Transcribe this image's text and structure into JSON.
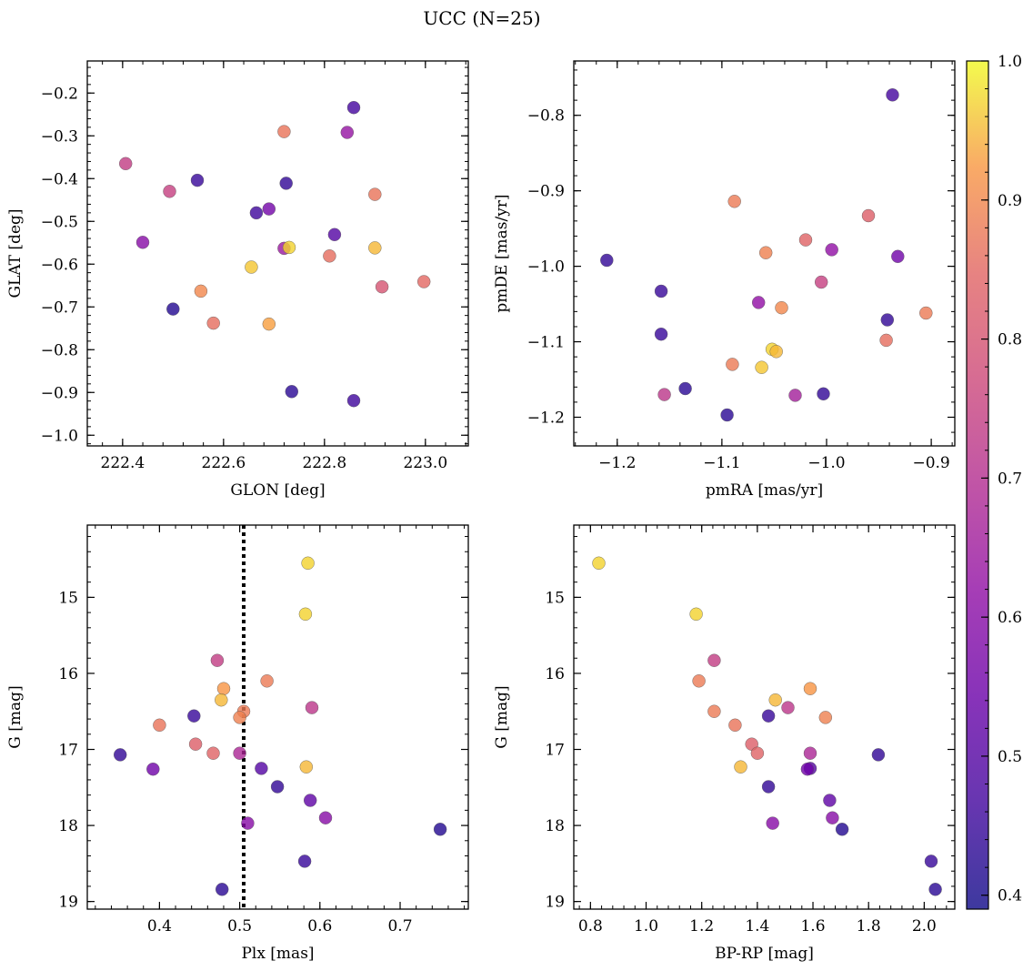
{
  "figure": {
    "title": "UCC (N=25)"
  },
  "colorbar": {
    "range": [
      0.39,
      1.0
    ],
    "ticks": [
      "0.4",
      "0.5",
      "0.6",
      "0.7",
      "0.8",
      "0.9",
      "1.0"
    ],
    "tick_values": [
      0.4,
      0.5,
      0.6,
      0.7,
      0.8,
      0.9,
      1.0
    ],
    "colormap": "plasma"
  },
  "chart_data": [
    {
      "type": "scatter",
      "xlabel": "GLON [deg]",
      "ylabel": "GLAT [deg]",
      "xlim": [
        222.33,
        223.085
      ],
      "ylim": [
        -1.025,
        -0.125
      ],
      "xticks": [
        222.4,
        222.6,
        222.8,
        223.0
      ],
      "xticklabels": [
        "222.4",
        "222.6",
        "222.8",
        "223.0"
      ],
      "yticks": [
        -0.2,
        -0.3,
        -0.4,
        -0.5,
        -0.6,
        -0.7,
        -0.8,
        -0.9,
        -1.0
      ],
      "yticklabels": [
        "−0.2",
        "−0.3",
        "−0.4",
        "−0.5",
        "−0.6",
        "−0.7",
        "−0.8",
        "−0.9",
        "−1.0"
      ],
      "points": [
        {
          "x": 222.406,
          "y": -0.365,
          "c": 0.74
        },
        {
          "x": 222.493,
          "y": -0.43,
          "c": 0.75
        },
        {
          "x": 222.548,
          "y": -0.404,
          "c": 0.45
        },
        {
          "x": 222.44,
          "y": -0.549,
          "c": 0.6
        },
        {
          "x": 222.5,
          "y": -0.705,
          "c": 0.42
        },
        {
          "x": 222.555,
          "y": -0.663,
          "c": 0.9
        },
        {
          "x": 222.58,
          "y": -0.738,
          "c": 0.86
        },
        {
          "x": 222.655,
          "y": -0.607,
          "c": 0.96
        },
        {
          "x": 222.665,
          "y": -0.48,
          "c": 0.46
        },
        {
          "x": 222.69,
          "y": -0.471,
          "c": 0.56
        },
        {
          "x": 222.69,
          "y": -0.74,
          "c": 0.93
        },
        {
          "x": 222.72,
          "y": -0.29,
          "c": 0.87
        },
        {
          "x": 222.724,
          "y": -0.411,
          "c": 0.44
        },
        {
          "x": 222.72,
          "y": -0.563,
          "c": 0.64
        },
        {
          "x": 222.73,
          "y": -0.561,
          "c": 0.97
        },
        {
          "x": 222.735,
          "y": -0.898,
          "c": 0.43
        },
        {
          "x": 222.81,
          "y": -0.581,
          "c": 0.86
        },
        {
          "x": 222.82,
          "y": -0.531,
          "c": 0.5
        },
        {
          "x": 222.845,
          "y": -0.292,
          "c": 0.63
        },
        {
          "x": 222.858,
          "y": -0.234,
          "c": 0.47
        },
        {
          "x": 222.858,
          "y": -0.919,
          "c": 0.46
        },
        {
          "x": 222.9,
          "y": -0.437,
          "c": 0.87
        },
        {
          "x": 222.9,
          "y": -0.562,
          "c": 0.95
        },
        {
          "x": 222.914,
          "y": -0.653,
          "c": 0.8
        },
        {
          "x": 222.997,
          "y": -0.641,
          "c": 0.85
        }
      ]
    },
    {
      "type": "scatter",
      "xlabel": "pmRA [mas/yr]",
      "ylabel": "pmDE [mas/yr]",
      "xlim": [
        -1.2415,
        -0.8775
      ],
      "ylim": [
        -1.238,
        -0.728
      ],
      "xticks": [
        -1.2,
        -1.1,
        -1.0,
        -0.9
      ],
      "xticklabels": [
        "−1.2",
        "−1.1",
        "−1.0",
        "−0.9"
      ],
      "yticks": [
        -0.8,
        -0.9,
        -1.0,
        -1.1,
        -1.2
      ],
      "yticklabels": [
        "−0.8",
        "−0.9",
        "−1.0",
        "−1.1",
        "−1.2"
      ],
      "points": [
        {
          "x": -1.21,
          "y": -0.992,
          "c": 0.44
        },
        {
          "x": -1.158,
          "y": -1.033,
          "c": 0.45
        },
        {
          "x": -1.158,
          "y": -1.09,
          "c": 0.45
        },
        {
          "x": -1.155,
          "y": -1.17,
          "c": 0.72
        },
        {
          "x": -1.135,
          "y": -1.162,
          "c": 0.43
        },
        {
          "x": -1.095,
          "y": -1.197,
          "c": 0.43
        },
        {
          "x": -1.088,
          "y": -0.914,
          "c": 0.88
        },
        {
          "x": -1.09,
          "y": -1.13,
          "c": 0.88
        },
        {
          "x": -1.065,
          "y": -1.048,
          "c": 0.62
        },
        {
          "x": -1.062,
          "y": -1.134,
          "c": 0.96
        },
        {
          "x": -1.058,
          "y": -0.982,
          "c": 0.89
        },
        {
          "x": -1.052,
          "y": -1.11,
          "c": 0.97
        },
        {
          "x": -1.048,
          "y": -1.113,
          "c": 0.95
        },
        {
          "x": -1.043,
          "y": -1.055,
          "c": 0.9
        },
        {
          "x": -1.03,
          "y": -1.171,
          "c": 0.66
        },
        {
          "x": -1.02,
          "y": -0.965,
          "c": 0.84
        },
        {
          "x": -1.005,
          "y": -1.021,
          "c": 0.75
        },
        {
          "x": -1.003,
          "y": -1.169,
          "c": 0.44
        },
        {
          "x": -0.995,
          "y": -0.978,
          "c": 0.62
        },
        {
          "x": -0.96,
          "y": -0.933,
          "c": 0.83
        },
        {
          "x": -0.943,
          "y": -1.098,
          "c": 0.86
        },
        {
          "x": -0.942,
          "y": -1.071,
          "c": 0.44
        },
        {
          "x": -0.937,
          "y": -0.773,
          "c": 0.47
        },
        {
          "x": -0.932,
          "y": -0.987,
          "c": 0.55
        },
        {
          "x": -0.905,
          "y": -1.062,
          "c": 0.88
        }
      ]
    },
    {
      "type": "scatter",
      "xlabel": "Plx [mas]",
      "ylabel": "G [mag]",
      "xlim": [
        0.31,
        0.785
      ],
      "ylim": [
        19.1,
        14.05
      ],
      "xticks": [
        0.4,
        0.5,
        0.6,
        0.7
      ],
      "xticklabels": [
        "0.4",
        "0.5",
        "0.6",
        "0.7"
      ],
      "yticks": [
        15,
        16,
        17,
        18,
        19
      ],
      "yticklabels": [
        "15",
        "16",
        "17",
        "18",
        "19"
      ],
      "vline": 0.505,
      "points": [
        {
          "x": 0.585,
          "y": 14.55,
          "c": 0.97
        },
        {
          "x": 0.582,
          "y": 15.22,
          "c": 0.97
        },
        {
          "x": 0.472,
          "y": 15.83,
          "c": 0.74
        },
        {
          "x": 0.534,
          "y": 16.1,
          "c": 0.88
        },
        {
          "x": 0.48,
          "y": 16.2,
          "c": 0.92
        },
        {
          "x": 0.477,
          "y": 16.35,
          "c": 0.95
        },
        {
          "x": 0.59,
          "y": 16.45,
          "c": 0.72
        },
        {
          "x": 0.505,
          "y": 16.5,
          "c": 0.88
        },
        {
          "x": 0.443,
          "y": 16.56,
          "c": 0.45
        },
        {
          "x": 0.5,
          "y": 16.58,
          "c": 0.89
        },
        {
          "x": 0.4,
          "y": 16.68,
          "c": 0.87
        },
        {
          "x": 0.445,
          "y": 16.93,
          "c": 0.83
        },
        {
          "x": 0.467,
          "y": 17.05,
          "c": 0.84
        },
        {
          "x": 0.5,
          "y": 17.05,
          "c": 0.68
        },
        {
          "x": 0.351,
          "y": 17.07,
          "c": 0.44
        },
        {
          "x": 0.583,
          "y": 17.23,
          "c": 0.95
        },
        {
          "x": 0.527,
          "y": 17.25,
          "c": 0.5
        },
        {
          "x": 0.392,
          "y": 17.26,
          "c": 0.55
        },
        {
          "x": 0.547,
          "y": 17.49,
          "c": 0.44
        },
        {
          "x": 0.588,
          "y": 17.67,
          "c": 0.52
        },
        {
          "x": 0.607,
          "y": 17.9,
          "c": 0.6
        },
        {
          "x": 0.51,
          "y": 17.97,
          "c": 0.6
        },
        {
          "x": 0.75,
          "y": 18.05,
          "c": 0.42
        },
        {
          "x": 0.581,
          "y": 18.47,
          "c": 0.45
        },
        {
          "x": 0.478,
          "y": 18.84,
          "c": 0.43
        }
      ]
    },
    {
      "type": "scatter",
      "xlabel": "BP-RP [mag]",
      "ylabel": "G [mag]",
      "xlim": [
        0.74,
        2.11
      ],
      "ylim": [
        19.1,
        14.05
      ],
      "xticks": [
        0.8,
        1.0,
        1.2,
        1.4,
        1.6,
        1.8,
        2.0
      ],
      "xticklabels": [
        "0.8",
        "1.0",
        "1.2",
        "1.4",
        "1.6",
        "1.8",
        "2.0"
      ],
      "yticks": [
        15,
        16,
        17,
        18,
        19
      ],
      "yticklabels": [
        "15",
        "16",
        "17",
        "18",
        "19"
      ],
      "points": [
        {
          "x": 0.83,
          "y": 14.55,
          "c": 0.97
        },
        {
          "x": 1.18,
          "y": 15.22,
          "c": 0.97
        },
        {
          "x": 1.245,
          "y": 15.83,
          "c": 0.74
        },
        {
          "x": 1.19,
          "y": 16.1,
          "c": 0.88
        },
        {
          "x": 1.59,
          "y": 16.2,
          "c": 0.92
        },
        {
          "x": 1.465,
          "y": 16.35,
          "c": 0.95
        },
        {
          "x": 1.51,
          "y": 16.45,
          "c": 0.72
        },
        {
          "x": 1.245,
          "y": 16.5,
          "c": 0.88
        },
        {
          "x": 1.44,
          "y": 16.56,
          "c": 0.45
        },
        {
          "x": 1.645,
          "y": 16.58,
          "c": 0.89
        },
        {
          "x": 1.32,
          "y": 16.68,
          "c": 0.87
        },
        {
          "x": 1.38,
          "y": 16.93,
          "c": 0.83
        },
        {
          "x": 1.4,
          "y": 17.05,
          "c": 0.84
        },
        {
          "x": 1.59,
          "y": 17.05,
          "c": 0.68
        },
        {
          "x": 1.835,
          "y": 17.07,
          "c": 0.44
        },
        {
          "x": 1.34,
          "y": 17.23,
          "c": 0.95
        },
        {
          "x": 1.59,
          "y": 17.25,
          "c": 0.5
        },
        {
          "x": 1.58,
          "y": 17.26,
          "c": 0.55
        },
        {
          "x": 1.44,
          "y": 17.49,
          "c": 0.44
        },
        {
          "x": 1.66,
          "y": 17.67,
          "c": 0.52
        },
        {
          "x": 1.67,
          "y": 17.9,
          "c": 0.6
        },
        {
          "x": 1.455,
          "y": 17.97,
          "c": 0.6
        },
        {
          "x": 1.705,
          "y": 18.05,
          "c": 0.42
        },
        {
          "x": 2.025,
          "y": 18.47,
          "c": 0.45
        },
        {
          "x": 2.04,
          "y": 18.84,
          "c": 0.43
        }
      ]
    }
  ]
}
